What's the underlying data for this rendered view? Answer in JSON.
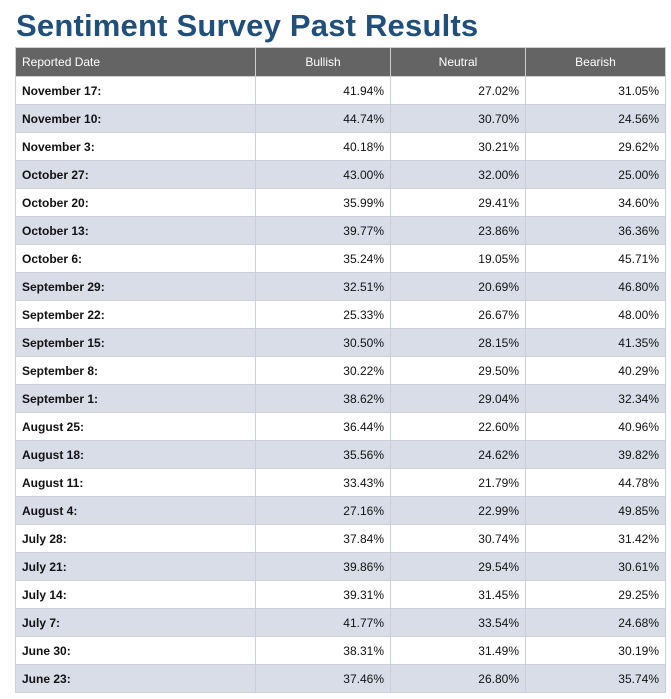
{
  "title": "Sentiment Survey Past Results",
  "columns": [
    "Reported Date",
    "Bullish",
    "Neutral",
    "Bearish"
  ],
  "rows": [
    {
      "date": "November 17:",
      "bullish": "41.94%",
      "neutral": "27.02%",
      "bearish": "31.05%"
    },
    {
      "date": "November 10:",
      "bullish": "44.74%",
      "neutral": "30.70%",
      "bearish": "24.56%"
    },
    {
      "date": "November 3:",
      "bullish": "40.18%",
      "neutral": "30.21%",
      "bearish": "29.62%"
    },
    {
      "date": "October 27:",
      "bullish": "43.00%",
      "neutral": "32.00%",
      "bearish": "25.00%"
    },
    {
      "date": "October 20:",
      "bullish": "35.99%",
      "neutral": "29.41%",
      "bearish": "34.60%"
    },
    {
      "date": "October 13:",
      "bullish": "39.77%",
      "neutral": "23.86%",
      "bearish": "36.36%"
    },
    {
      "date": "October 6:",
      "bullish": "35.24%",
      "neutral": "19.05%",
      "bearish": "45.71%"
    },
    {
      "date": "September 29:",
      "bullish": "32.51%",
      "neutral": "20.69%",
      "bearish": "46.80%"
    },
    {
      "date": "September 22:",
      "bullish": "25.33%",
      "neutral": "26.67%",
      "bearish": "48.00%"
    },
    {
      "date": "September 15:",
      "bullish": "30.50%",
      "neutral": "28.15%",
      "bearish": "41.35%"
    },
    {
      "date": "September 8:",
      "bullish": "30.22%",
      "neutral": "29.50%",
      "bearish": "40.29%"
    },
    {
      "date": "September 1:",
      "bullish": "38.62%",
      "neutral": "29.04%",
      "bearish": "32.34%"
    },
    {
      "date": "August 25:",
      "bullish": "36.44%",
      "neutral": "22.60%",
      "bearish": "40.96%"
    },
    {
      "date": "August 18:",
      "bullish": "35.56%",
      "neutral": "24.62%",
      "bearish": "39.82%"
    },
    {
      "date": "August 11:",
      "bullish": "33.43%",
      "neutral": "21.79%",
      "bearish": "44.78%"
    },
    {
      "date": "August 4:",
      "bullish": "27.16%",
      "neutral": "22.99%",
      "bearish": "49.85%"
    },
    {
      "date": "July 28:",
      "bullish": "37.84%",
      "neutral": "30.74%",
      "bearish": "31.42%"
    },
    {
      "date": "July 21:",
      "bullish": "39.86%",
      "neutral": "29.54%",
      "bearish": "30.61%"
    },
    {
      "date": "July 14:",
      "bullish": "39.31%",
      "neutral": "31.45%",
      "bearish": "29.25%"
    },
    {
      "date": "July 7:",
      "bullish": "41.77%",
      "neutral": "33.54%",
      "bearish": "24.68%"
    },
    {
      "date": "June 30:",
      "bullish": "38.31%",
      "neutral": "31.49%",
      "bearish": "30.19%"
    },
    {
      "date": "June 23:",
      "bullish": "37.46%",
      "neutral": "26.80%",
      "bearish": "35.74%"
    }
  ],
  "colors": {
    "title": "#1f4f7a",
    "header_bg": "#646464",
    "row_alt_bg": "#d8dde8"
  }
}
